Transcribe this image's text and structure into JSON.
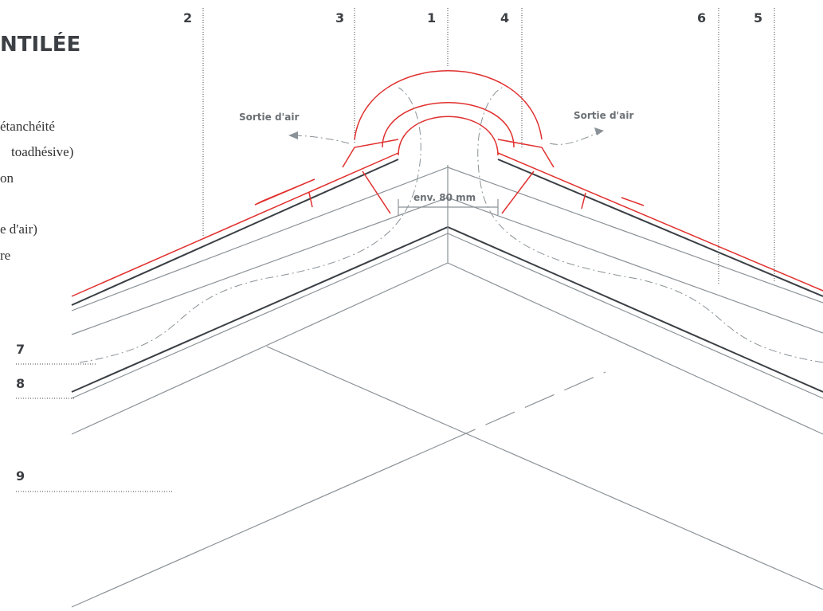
{
  "header": {
    "title": "NTILÉE"
  },
  "left_text": [
    "étanchéité",
    "toadhésive)",
    "on",
    "e d'air)",
    "re"
  ],
  "labels": {
    "n1": "1",
    "n2": "2",
    "n3": "3",
    "n4": "4",
    "n5": "5",
    "n6": "6",
    "n7": "7",
    "n8": "8",
    "n9": "9"
  },
  "annotations": {
    "air_out_left": "Sortie d'air",
    "air_out_right": "Sortie d'air",
    "gap": "env. 80 mm"
  }
}
